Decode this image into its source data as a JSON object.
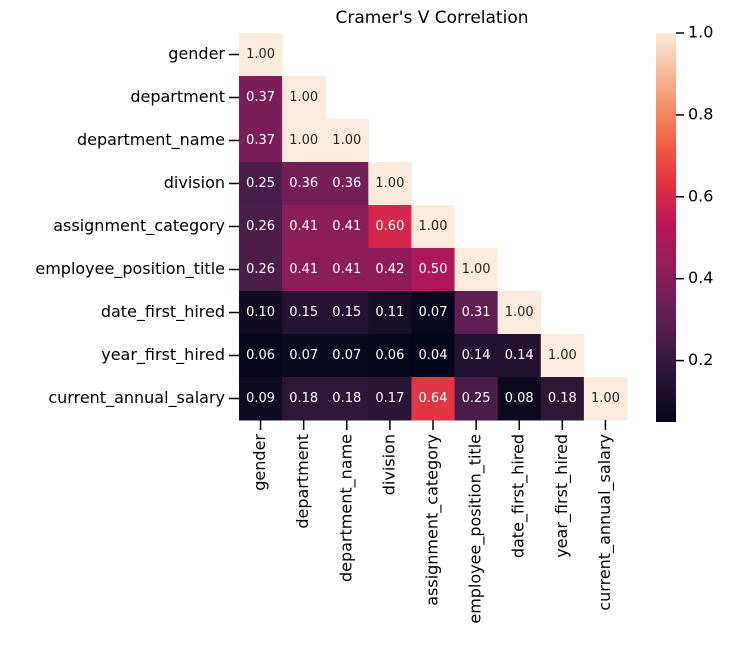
{
  "chart_data": {
    "type": "heatmap",
    "title": "Cramer's V Correlation",
    "categories": [
      "gender",
      "department",
      "department_name",
      "division",
      "assignment_category",
      "employee_position_title",
      "date_first_hired",
      "year_first_hired",
      "current_annual_salary"
    ],
    "values": [
      [
        1,
        null,
        null,
        null,
        null,
        null,
        null,
        null,
        null
      ],
      [
        0.37,
        1,
        null,
        null,
        null,
        null,
        null,
        null,
        null
      ],
      [
        0.37,
        1,
        1,
        null,
        null,
        null,
        null,
        null,
        null
      ],
      [
        0.25,
        0.36,
        0.36,
        1,
        null,
        null,
        null,
        null,
        null
      ],
      [
        0.26,
        0.41,
        0.41,
        0.6,
        1,
        null,
        null,
        null,
        null
      ],
      [
        0.26,
        0.41,
        0.41,
        0.42,
        0.5,
        1,
        null,
        null,
        null
      ],
      [
        0.1,
        0.15,
        0.15,
        0.11,
        0.07,
        0.31,
        1,
        null,
        null
      ],
      [
        0.06,
        0.07,
        0.07,
        0.06,
        0.04,
        0.14,
        0.14,
        1,
        null
      ],
      [
        0.09,
        0.18,
        0.18,
        0.17,
        0.64,
        0.25,
        0.08,
        0.18,
        1
      ]
    ],
    "value_labels": [
      [
        "1.00",
        null,
        null,
        null,
        null,
        null,
        null,
        null,
        null
      ],
      [
        "0.37",
        "1.00",
        null,
        null,
        null,
        null,
        null,
        null,
        null
      ],
      [
        "0.37",
        "1.00",
        "1.00",
        null,
        null,
        null,
        null,
        null,
        null
      ],
      [
        "0.25",
        "0.36",
        "0.36",
        "1.00",
        null,
        null,
        null,
        null,
        null
      ],
      [
        "0.26",
        "0.41",
        "0.41",
        "0.60",
        "1.00",
        null,
        null,
        null,
        null
      ],
      [
        "0.26",
        "0.41",
        "0.41",
        "0.42",
        "0.50",
        "1.00",
        null,
        null,
        null
      ],
      [
        "0.10",
        "0.15",
        "0.15",
        "0.11",
        "0.07",
        "0.31",
        "1.00",
        null,
        null
      ],
      [
        "0.06",
        "0.07",
        "0.07",
        "0.06",
        "0.04",
        "0.14",
        "0.14",
        "1.00",
        null
      ],
      [
        "0.09",
        "0.18",
        "0.18",
        "0.17",
        "0.64",
        "0.25",
        "0.08",
        "0.18",
        "1.00"
      ]
    ],
    "colormap": "rocket",
    "clim": [
      0.05,
      1
    ],
    "cticks": [
      0.2,
      0.4,
      0.6,
      0.8,
      {
        "value": 1,
        "label": "1.0"
      }
    ]
  }
}
